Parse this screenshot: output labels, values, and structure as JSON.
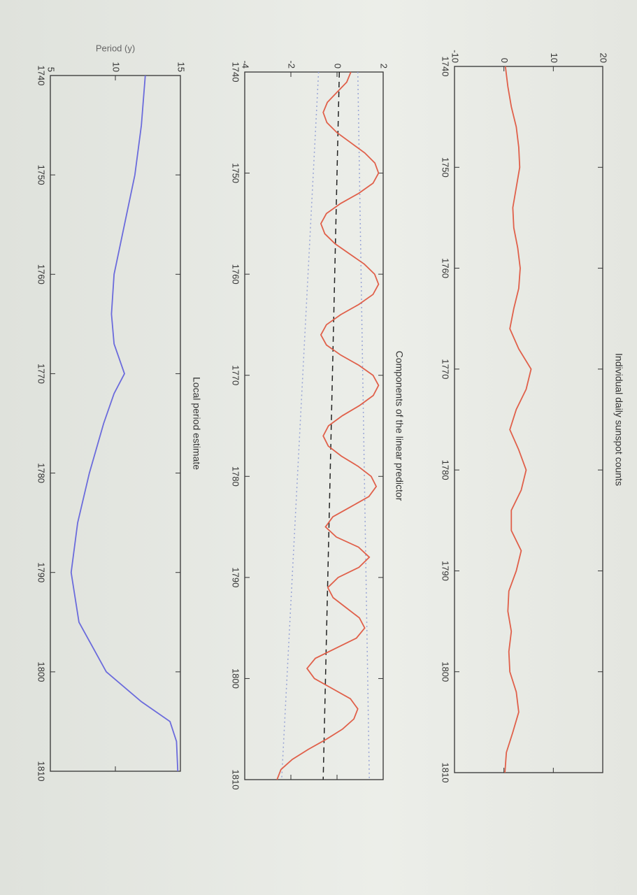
{
  "chart_data": [
    {
      "type": "line",
      "title": "Individual daily sunspot counts",
      "xlim": [
        1740,
        1810
      ],
      "xticks": [
        1740,
        1750,
        1760,
        1770,
        1780,
        1790,
        1800,
        1810
      ],
      "ylim": [
        -10,
        20
      ],
      "yticks": [
        -10,
        0,
        10,
        20
      ],
      "series": [
        {
          "color": "#e0604a",
          "style": "solid",
          "x": [
            1740,
            1742,
            1744,
            1746,
            1748,
            1750,
            1752,
            1754,
            1756,
            1758,
            1760,
            1762,
            1764,
            1766,
            1768,
            1770,
            1772,
            1774,
            1776,
            1778,
            1780,
            1782,
            1784,
            1786,
            1788,
            1790,
            1792,
            1794,
            1796,
            1798,
            1800,
            1802,
            1804,
            1806,
            1808,
            1810
          ],
          "values": [
            0.3,
            0.8,
            1.5,
            2.5,
            3,
            3.2,
            2.5,
            1.8,
            2,
            2.8,
            3.3,
            3,
            2,
            1.2,
            3,
            5.5,
            4.5,
            2.5,
            1.2,
            3,
            4.5,
            3.5,
            1.5,
            1.5,
            3.5,
            2.5,
            1,
            0.8,
            1.5,
            1,
            1.2,
            2.5,
            3,
            1.8,
            0.5,
            0.2
          ]
        }
      ]
    },
    {
      "type": "line",
      "title": "Components of the linear predictor",
      "xlim": [
        1740,
        1810
      ],
      "xticks": [
        1740,
        1750,
        1760,
        1770,
        1780,
        1790,
        1800,
        1810
      ],
      "ylim": [
        -4,
        2
      ],
      "yticks": [
        -4,
        -2,
        0,
        2
      ],
      "series": [
        {
          "color": "#9aa6d6",
          "style": "dotted",
          "x": [
            1740,
            1810
          ],
          "values": [
            0.9,
            1.4
          ]
        },
        {
          "color": "#9aa6d6",
          "style": "dotted",
          "x": [
            1740,
            1810
          ],
          "values": [
            -0.8,
            -2.4
          ]
        },
        {
          "color": "#222222",
          "style": "dashed",
          "x": [
            1740,
            1810
          ],
          "values": [
            0.1,
            -0.6
          ]
        },
        {
          "color": "#e0604a",
          "style": "solid",
          "x": [
            1740,
            1741,
            1742,
            1743,
            1744,
            1745,
            1746,
            1747,
            1748,
            1749,
            1750,
            1751,
            1752,
            1753,
            1754,
            1755,
            1756,
            1757,
            1758,
            1759,
            1760,
            1761,
            1762,
            1763,
            1764,
            1765,
            1766,
            1767,
            1768,
            1769,
            1770,
            1771,
            1772,
            1773,
            1774,
            1775,
            1776,
            1777,
            1778,
            1779,
            1780,
            1781,
            1782,
            1783,
            1784,
            1785,
            1786,
            1787,
            1788,
            1789,
            1790,
            1791,
            1792,
            1793,
            1794,
            1795,
            1796,
            1797,
            1798,
            1799,
            1800,
            1801,
            1802,
            1803,
            1804,
            1805,
            1806,
            1807,
            1808,
            1809,
            1810
          ],
          "values": [
            0.6,
            0.42,
            0,
            -0.42,
            -0.6,
            -0.44,
            0,
            0.6,
            1.2,
            1.64,
            1.8,
            1.56,
            0.94,
            0.16,
            -0.46,
            -0.7,
            -0.53,
            -0.08,
            0.55,
            1.18,
            1.63,
            1.8,
            1.56,
            0.94,
            0.16,
            -0.46,
            -0.7,
            -0.46,
            0.16,
            0.94,
            1.56,
            1.8,
            1.57,
            0.97,
            0.23,
            -0.37,
            -0.6,
            -0.38,
            0.19,
            0.91,
            1.48,
            1.7,
            1.38,
            0.6,
            -0.18,
            -0.5,
            -0.03,
            0.93,
            1.4,
            0.95,
            0.05,
            -0.4,
            -0.17,
            0.4,
            0.97,
            1.2,
            0.84,
            -0.05,
            -0.94,
            -1.3,
            -0.98,
            -0.2,
            0.58,
            0.9,
            0.73,
            0.24,
            -0.46,
            -1.24,
            -1.94,
            -2.43,
            -2.6
          ]
        }
      ]
    },
    {
      "type": "line",
      "title": "Local period estimate",
      "ylabel": "Period (y)",
      "xlim": [
        1740,
        1810
      ],
      "xticks": [
        1740,
        1750,
        1760,
        1770,
        1780,
        1790,
        1800,
        1810
      ],
      "ylim": [
        5,
        15
      ],
      "yticks": [
        5,
        10,
        15
      ],
      "series": [
        {
          "color": "#6b6bdc",
          "style": "solid",
          "x": [
            1740,
            1745,
            1750,
            1755,
            1760,
            1764,
            1767,
            1770,
            1772,
            1775,
            1780,
            1785,
            1790,
            1795,
            1800,
            1803,
            1805,
            1807,
            1810
          ],
          "values": [
            12.3,
            12,
            11.5,
            10.7,
            9.9,
            9.7,
            9.9,
            10.7,
            9.9,
            9.1,
            8,
            7.1,
            6.6,
            7.2,
            9.3,
            12,
            14.2,
            14.7,
            14.8
          ]
        }
      ]
    }
  ]
}
